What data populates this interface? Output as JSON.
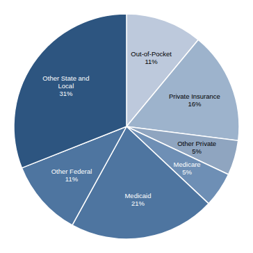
{
  "chart_data": {
    "type": "pie",
    "categories": [
      "Out-of-Pocket\n11%",
      "Private Insurance\n16%",
      "Other Private\n5%",
      "Medicare\n5%",
      "Medicaid\n21%",
      "Other Federal\n11%",
      "Other State and\nLocal\n31%"
    ],
    "values": [
      11,
      16,
      5,
      5,
      21,
      11,
      31
    ],
    "colors": [
      "#bdc9dc",
      "#9db3cc",
      "#8fa5c0",
      "#6e8fb5",
      "#4e75a0",
      "#4e75a0",
      "#2d5580"
    ]
  }
}
